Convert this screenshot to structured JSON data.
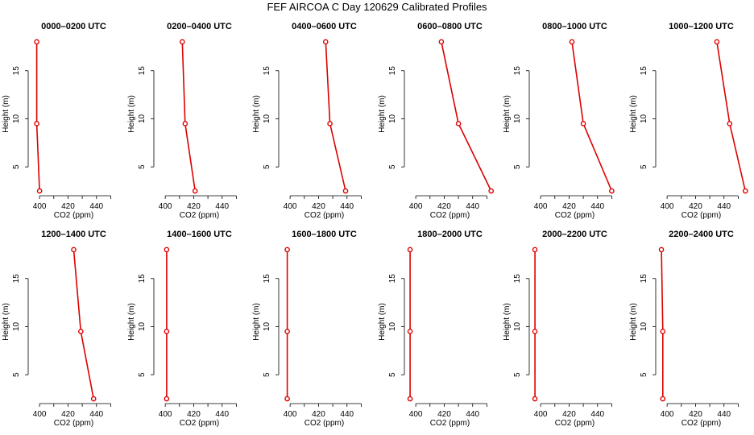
{
  "figure_title": "FEF AIRCOA C  Day 120629  Calibrated Profiles",
  "colors": {
    "line": "#dd0000",
    "axis": "#000000",
    "background": "#ffffff"
  },
  "chart_data": [
    {
      "type": "line",
      "title": "0000–0200 UTC",
      "xlabel": "CO2 (ppm)",
      "ylabel": "Height (m)",
      "xlim": [
        392,
        456
      ],
      "ylim": [
        2,
        19
      ],
      "xticks": [
        "400",
        "420",
        "440"
      ],
      "yticks": [
        "5",
        "10",
        "15"
      ],
      "x": [
        398,
        398,
        400
      ],
      "y": [
        18,
        9.5,
        2.5
      ]
    },
    {
      "type": "line",
      "title": "0200–0400 UTC",
      "xlabel": "CO2 (ppm)",
      "ylabel": "Height (m)",
      "xlim": [
        392,
        456
      ],
      "ylim": [
        2,
        19
      ],
      "xticks": [
        "400",
        "420",
        "440"
      ],
      "yticks": [
        "5",
        "10",
        "15"
      ],
      "x": [
        412,
        414,
        421
      ],
      "y": [
        18,
        9.5,
        2.5
      ]
    },
    {
      "type": "line",
      "title": "0400–0600 UTC",
      "xlabel": "CO2 (ppm)",
      "ylabel": "Height (m)",
      "xlim": [
        392,
        456
      ],
      "ylim": [
        2,
        19
      ],
      "xticks": [
        "400",
        "420",
        "440"
      ],
      "yticks": [
        "5",
        "10",
        "15"
      ],
      "x": [
        425,
        428,
        439
      ],
      "y": [
        18,
        9.5,
        2.5
      ]
    },
    {
      "type": "line",
      "title": "0600–0800 UTC",
      "xlabel": "CO2 (ppm)",
      "ylabel": "Height (m)",
      "xlim": [
        392,
        456
      ],
      "ylim": [
        2,
        19
      ],
      "xticks": [
        "400",
        "420",
        "440"
      ],
      "yticks": [
        "5",
        "10",
        "15"
      ],
      "x": [
        418,
        430,
        453
      ],
      "y": [
        18,
        9.5,
        2.5
      ]
    },
    {
      "type": "line",
      "title": "0800–1000 UTC",
      "xlabel": "CO2 (ppm)",
      "ylabel": "Height (m)",
      "xlim": [
        392,
        456
      ],
      "ylim": [
        2,
        19
      ],
      "xticks": [
        "400",
        "420",
        "440"
      ],
      "yticks": [
        "5",
        "10",
        "15"
      ],
      "x": [
        422,
        430,
        450
      ],
      "y": [
        18,
        9.5,
        2.5
      ]
    },
    {
      "type": "line",
      "title": "1000–1200 UTC",
      "xlabel": "CO2 (ppm)",
      "ylabel": "Height (m)",
      "xlim": [
        392,
        456
      ],
      "ylim": [
        2,
        19
      ],
      "xticks": [
        "400",
        "420",
        "440"
      ],
      "yticks": [
        "5",
        "10",
        "15"
      ],
      "x": [
        435,
        444,
        455
      ],
      "y": [
        18,
        9.5,
        2.5
      ]
    },
    {
      "type": "line",
      "title": "1200–1400 UTC",
      "xlabel": "CO2 (ppm)",
      "ylabel": "Height (m)",
      "xlim": [
        392,
        456
      ],
      "ylim": [
        2,
        19
      ],
      "xticks": [
        "400",
        "420",
        "440"
      ],
      "yticks": [
        "5",
        "10",
        "15"
      ],
      "x": [
        424,
        429,
        438
      ],
      "y": [
        18,
        9.5,
        2.5
      ]
    },
    {
      "type": "line",
      "title": "1400–1600 UTC",
      "xlabel": "CO2 (ppm)",
      "ylabel": "Height (m)",
      "xlim": [
        392,
        456
      ],
      "ylim": [
        2,
        19
      ],
      "xticks": [
        "400",
        "420",
        "440"
      ],
      "yticks": [
        "5",
        "10",
        "15"
      ],
      "x": [
        401,
        401,
        401
      ],
      "y": [
        18,
        9.5,
        2.5
      ]
    },
    {
      "type": "line",
      "title": "1600–1800 UTC",
      "xlabel": "CO2 (ppm)",
      "ylabel": "Height (m)",
      "xlim": [
        392,
        456
      ],
      "ylim": [
        2,
        19
      ],
      "xticks": [
        "400",
        "420",
        "440"
      ],
      "yticks": [
        "5",
        "10",
        "15"
      ],
      "x": [
        398,
        398,
        398
      ],
      "y": [
        18,
        9.5,
        2.5
      ]
    },
    {
      "type": "line",
      "title": "1800–2000 UTC",
      "xlabel": "CO2 (ppm)",
      "ylabel": "Height (m)",
      "xlim": [
        392,
        456
      ],
      "ylim": [
        2,
        19
      ],
      "xticks": [
        "400",
        "420",
        "440"
      ],
      "yticks": [
        "5",
        "10",
        "15"
      ],
      "x": [
        396,
        396,
        396
      ],
      "y": [
        18,
        9.5,
        2.5
      ]
    },
    {
      "type": "line",
      "title": "2000–2200 UTC",
      "xlabel": "CO2 (ppm)",
      "ylabel": "Height (m)",
      "xlim": [
        392,
        456
      ],
      "ylim": [
        2,
        19
      ],
      "xticks": [
        "400",
        "420",
        "440"
      ],
      "yticks": [
        "5",
        "10",
        "15"
      ],
      "x": [
        396,
        396,
        396
      ],
      "y": [
        18,
        9.5,
        2.5
      ]
    },
    {
      "type": "line",
      "title": "2200–2400 UTC",
      "xlabel": "CO2 (ppm)",
      "ylabel": "Height (m)",
      "xlim": [
        392,
        456
      ],
      "ylim": [
        2,
        19
      ],
      "xticks": [
        "400",
        "420",
        "440"
      ],
      "yticks": [
        "5",
        "10",
        "15"
      ],
      "x": [
        396,
        397,
        397
      ],
      "y": [
        18,
        9.5,
        2.5
      ]
    }
  ]
}
